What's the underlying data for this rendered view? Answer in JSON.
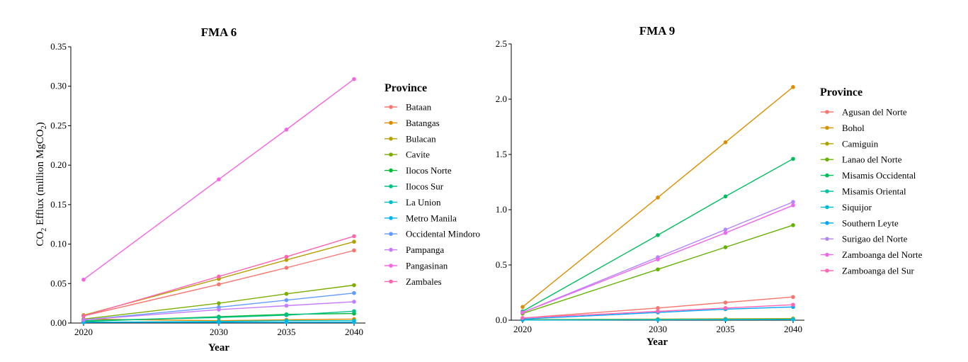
{
  "chart_data": [
    {
      "type": "line",
      "title": "FMA 6",
      "xlabel": "Year",
      "ylabel_main": "CO",
      "ylabel_sub1": "2",
      "ylabel_mid": " Efflux (million MgCO",
      "ylabel_sub2": "2",
      "ylabel_end": ")",
      "x": [
        2020,
        2030,
        2035,
        2040
      ],
      "xticks": [
        "2020",
        "2030",
        "2035",
        "2040"
      ],
      "ylim": [
        0,
        0.35
      ],
      "yticks": [
        "0.00",
        "0.05",
        "0.10",
        "0.15",
        "0.20",
        "0.25",
        "0.30",
        "0.35"
      ],
      "legend_title": "Province",
      "series": [
        {
          "name": "Bataan",
          "color": "#F8766D",
          "values": [
            0.009,
            0.049,
            0.07,
            0.092
          ]
        },
        {
          "name": "Batangas",
          "color": "#DE8C00",
          "values": [
            0.005,
            0.003,
            0.004,
            0.005
          ]
        },
        {
          "name": "Bulacan",
          "color": "#B79F00",
          "values": [
            0.01,
            0.056,
            0.08,
            0.103
          ]
        },
        {
          "name": "Cavite",
          "color": "#7CAE00",
          "values": [
            0.005,
            0.025,
            0.037,
            0.048
          ]
        },
        {
          "name": "Ilocos Norte",
          "color": "#00BA38",
          "values": [
            0.002,
            0.008,
            0.011,
            0.012
          ]
        },
        {
          "name": "Ilocos Sur",
          "color": "#00C08B",
          "values": [
            0.003,
            0.007,
            0.01,
            0.015
          ]
        },
        {
          "name": "La Union",
          "color": "#00BFC4",
          "values": [
            0.001,
            0.002,
            0.003,
            0.003
          ]
        },
        {
          "name": "Metro Manila",
          "color": "#00B4F0",
          "values": [
            0.001,
            0.001,
            0.001,
            0.001
          ]
        },
        {
          "name": "Occidental Mindoro",
          "color": "#619CFF",
          "values": [
            0.004,
            0.02,
            0.029,
            0.038
          ]
        },
        {
          "name": "Pampanga",
          "color": "#C77CFF",
          "values": [
            0.004,
            0.017,
            0.022,
            0.027
          ]
        },
        {
          "name": "Pangasinan",
          "color": "#F564E3",
          "values": [
            0.055,
            0.182,
            0.245,
            0.309
          ]
        },
        {
          "name": "Zambales",
          "color": "#FF64B0",
          "values": [
            0.009,
            0.059,
            0.084,
            0.11
          ]
        }
      ]
    },
    {
      "type": "line",
      "title": "FMA 9",
      "xlabel": "Year",
      "x": [
        2020,
        2030,
        2035,
        2040
      ],
      "xticks": [
        "2020",
        "2030",
        "2035",
        "2040"
      ],
      "ylim": [
        0,
        2.5
      ],
      "yticks": [
        "0.0",
        "0.5",
        "1.0",
        "1.5",
        "2.0",
        "2.5"
      ],
      "legend_title": "Province",
      "series": [
        {
          "name": "Agusan del Norte",
          "color": "#F8766D",
          "values": [
            0.02,
            0.11,
            0.16,
            0.21
          ]
        },
        {
          "name": "Bohol",
          "color": "#DB8E00",
          "values": [
            0.12,
            1.11,
            1.61,
            2.11
          ]
        },
        {
          "name": "Camiguin",
          "color": "#AEA200",
          "values": [
            0.005,
            0.01,
            0.012,
            0.015
          ]
        },
        {
          "name": "Lanao del Norte",
          "color": "#64B200",
          "values": [
            0.06,
            0.46,
            0.66,
            0.86
          ]
        },
        {
          "name": "Misamis Occidental",
          "color": "#00BD5C",
          "values": [
            0.08,
            0.77,
            1.12,
            1.46
          ]
        },
        {
          "name": "Misamis Oriental",
          "color": "#00C1A7",
          "values": [
            0.002,
            0.005,
            0.006,
            0.008
          ]
        },
        {
          "name": "Siquijor",
          "color": "#00BADE",
          "values": [
            0.002,
            0.004,
            0.005,
            0.006
          ]
        },
        {
          "name": "Southern Leyte",
          "color": "#00A6FF",
          "values": [
            0.01,
            0.07,
            0.1,
            0.12
          ]
        },
        {
          "name": "Surigao del Norte",
          "color": "#B385FF",
          "values": [
            0.07,
            0.57,
            0.82,
            1.07
          ]
        },
        {
          "name": "Zamboanga del Norte",
          "color": "#EF67EB",
          "values": [
            0.07,
            0.55,
            0.79,
            1.04
          ]
        },
        {
          "name": "Zamboanga del Sur",
          "color": "#FF63B6",
          "values": [
            0.02,
            0.08,
            0.11,
            0.14
          ]
        }
      ]
    }
  ]
}
